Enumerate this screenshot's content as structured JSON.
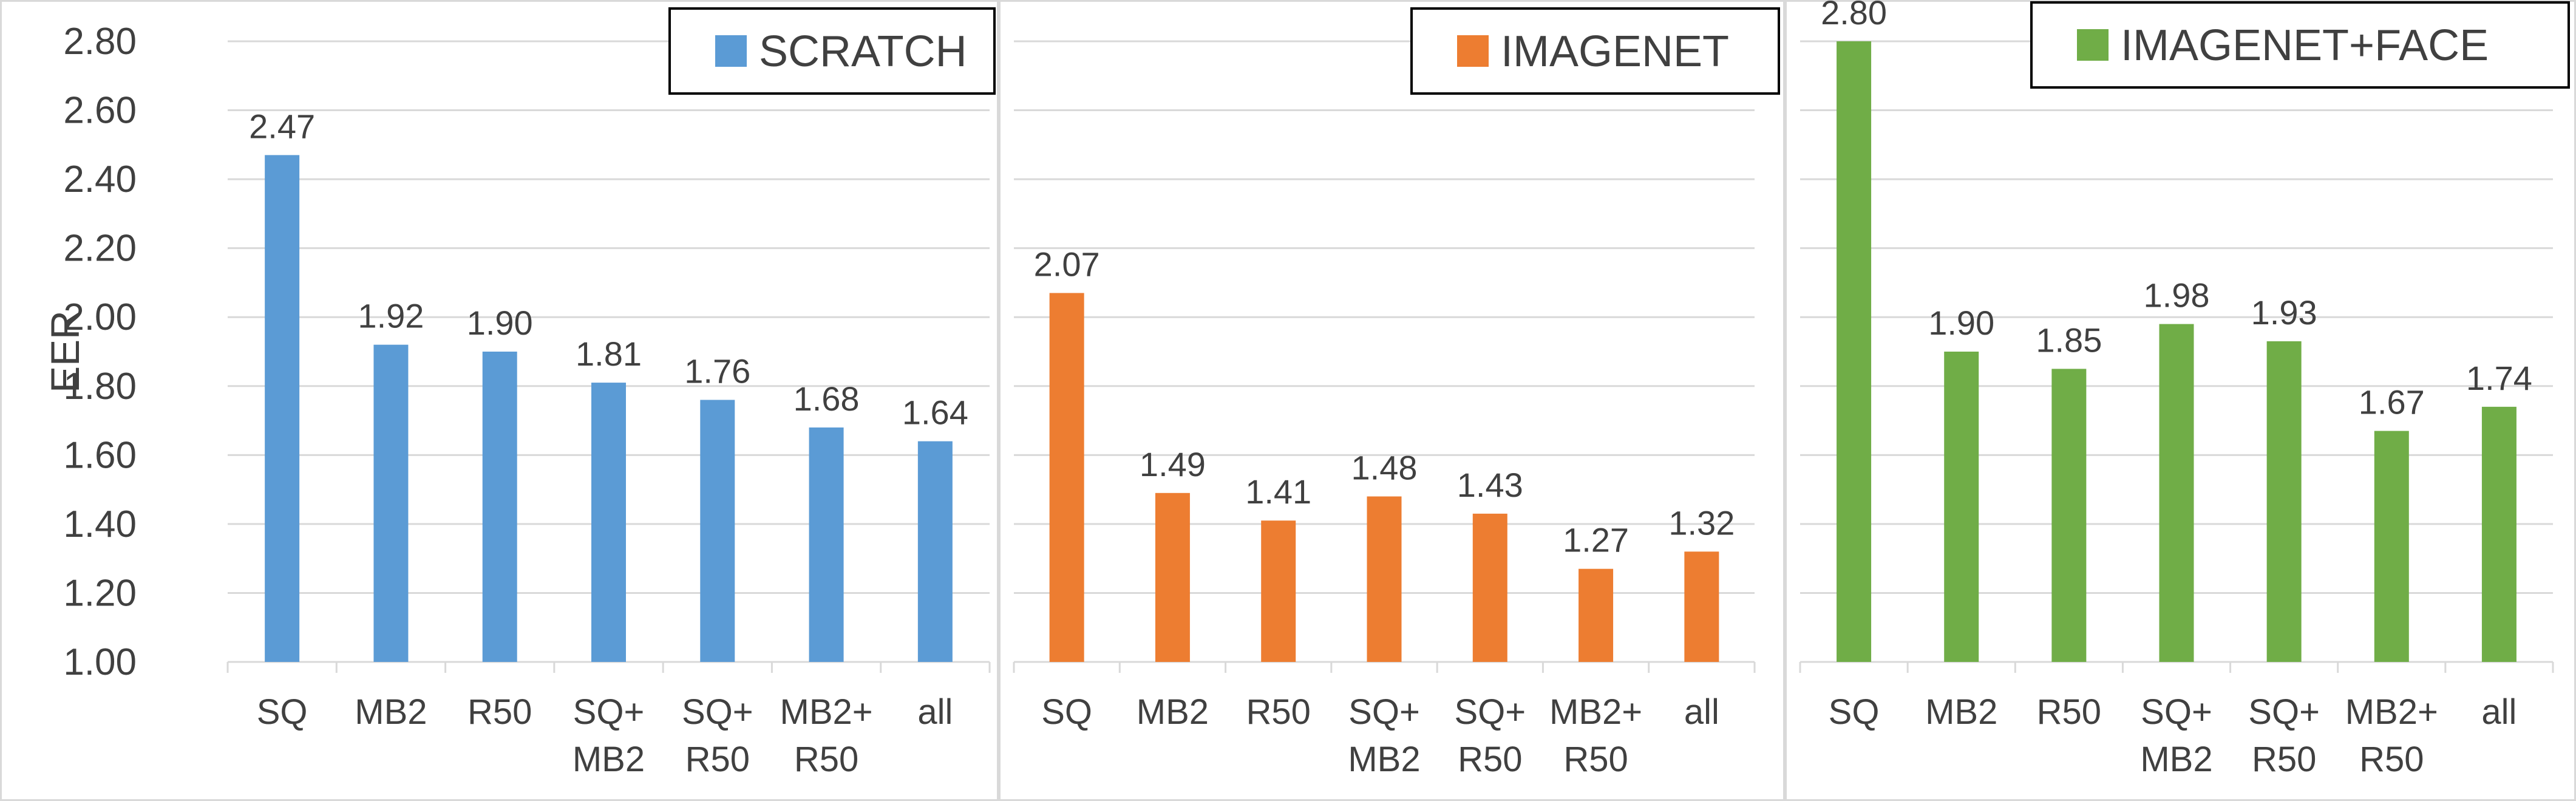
{
  "chart_data": [
    {
      "type": "bar",
      "title": "SCRATCH",
      "legend": "SCRATCH",
      "legend_position": "top-right",
      "color": "#5b9bd5",
      "ylabel": "EER",
      "xlabel": "",
      "ylim": [
        1.0,
        2.8
      ],
      "yticks": [
        "1.00",
        "1.20",
        "1.40",
        "1.60",
        "1.80",
        "2.00",
        "2.20",
        "2.40",
        "2.60",
        "2.80"
      ],
      "categories": [
        [
          "SQ"
        ],
        [
          "MB2"
        ],
        [
          "R50"
        ],
        [
          "SQ+",
          "MB2"
        ],
        [
          "SQ+",
          "R50"
        ],
        [
          "MB2+",
          "R50"
        ],
        [
          "all"
        ]
      ],
      "values": [
        2.47,
        1.92,
        1.9,
        1.81,
        1.76,
        1.68,
        1.64
      ],
      "labels": [
        "2.47",
        "1.92",
        "1.90",
        "1.81",
        "1.76",
        "1.68",
        "1.64"
      ]
    },
    {
      "type": "bar",
      "title": "IMAGENET",
      "legend": "IMAGENET",
      "legend_position": "top-right",
      "color": "#ed7d31",
      "ylim": [
        1.0,
        2.8
      ],
      "categories": [
        [
          "SQ"
        ],
        [
          "MB2"
        ],
        [
          "R50"
        ],
        [
          "SQ+",
          "MB2"
        ],
        [
          "SQ+",
          "R50"
        ],
        [
          "MB2+",
          "R50"
        ],
        [
          "all"
        ]
      ],
      "values": [
        2.07,
        1.49,
        1.41,
        1.48,
        1.43,
        1.27,
        1.32
      ],
      "labels": [
        "2.07",
        "1.49",
        "1.41",
        "1.48",
        "1.43",
        "1.27",
        "1.32"
      ]
    },
    {
      "type": "bar",
      "title": "IMAGENET+FACE",
      "legend": "IMAGENET+FACE",
      "legend_position": "top-right",
      "color": "#70ad47",
      "ylim": [
        1.0,
        2.8
      ],
      "categories": [
        [
          "SQ"
        ],
        [
          "MB2"
        ],
        [
          "R50"
        ],
        [
          "SQ+",
          "MB2"
        ],
        [
          "SQ+",
          "R50"
        ],
        [
          "MB2+",
          "R50"
        ],
        [
          "all"
        ]
      ],
      "values": [
        2.8,
        1.9,
        1.85,
        1.98,
        1.93,
        1.67,
        1.74
      ],
      "labels": [
        "2.80",
        "1.90",
        "1.85",
        "1.98",
        "1.93",
        "1.67",
        "1.74"
      ]
    }
  ]
}
